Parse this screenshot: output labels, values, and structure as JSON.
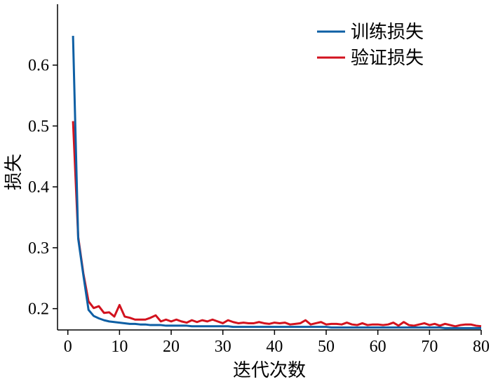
{
  "chart_data": {
    "type": "line",
    "xlabel": "迭代次数",
    "ylabel": "损失",
    "xlim": [
      -2,
      80
    ],
    "ylim": [
      0.165,
      0.7
    ],
    "xticks": [
      0,
      10,
      20,
      30,
      40,
      50,
      60,
      70,
      80
    ],
    "yticks": [
      0.2,
      0.3,
      0.4,
      0.5,
      0.6
    ],
    "x_tick_labels": [
      "0",
      "10",
      "20",
      "30",
      "40",
      "50",
      "60",
      "70",
      "80"
    ],
    "y_tick_labels": [
      "0.2",
      "0.3",
      "0.4",
      "0.5",
      "0.6"
    ],
    "grid": false,
    "legend_position": "top-right",
    "series": [
      {
        "name": "训练损失",
        "color": "#0e5fa4",
        "x": [
          1,
          2,
          3,
          4,
          5,
          6,
          7,
          8,
          9,
          10,
          11,
          12,
          13,
          14,
          15,
          16,
          17,
          18,
          19,
          20,
          21,
          22,
          23,
          24,
          25,
          26,
          27,
          28,
          29,
          30,
          31,
          32,
          33,
          34,
          35,
          36,
          37,
          38,
          39,
          40,
          41,
          42,
          43,
          44,
          45,
          46,
          47,
          48,
          49,
          50,
          51,
          52,
          53,
          54,
          55,
          56,
          57,
          58,
          59,
          60,
          61,
          62,
          63,
          64,
          65,
          66,
          67,
          68,
          69,
          70,
          71,
          72,
          73,
          74,
          75,
          76,
          77,
          78,
          79,
          80
        ],
        "values": [
          0.648,
          0.315,
          0.255,
          0.198,
          0.188,
          0.184,
          0.181,
          0.179,
          0.178,
          0.177,
          0.176,
          0.175,
          0.175,
          0.174,
          0.174,
          0.173,
          0.173,
          0.173,
          0.172,
          0.172,
          0.172,
          0.172,
          0.172,
          0.171,
          0.171,
          0.171,
          0.171,
          0.171,
          0.171,
          0.171,
          0.171,
          0.17,
          0.17,
          0.17,
          0.17,
          0.17,
          0.17,
          0.17,
          0.17,
          0.17,
          0.17,
          0.17,
          0.17,
          0.17,
          0.17,
          0.17,
          0.17,
          0.17,
          0.17,
          0.17,
          0.169,
          0.169,
          0.169,
          0.169,
          0.169,
          0.169,
          0.169,
          0.169,
          0.169,
          0.169,
          0.169,
          0.169,
          0.169,
          0.169,
          0.169,
          0.169,
          0.169,
          0.169,
          0.169,
          0.169,
          0.169,
          0.169,
          0.168,
          0.168,
          0.168,
          0.168,
          0.168,
          0.168,
          0.168,
          0.168
        ]
      },
      {
        "name": "验证损失",
        "color": "#d2121e",
        "x": [
          1,
          2,
          3,
          4,
          5,
          6,
          7,
          8,
          9,
          10,
          11,
          12,
          13,
          14,
          15,
          16,
          17,
          18,
          19,
          20,
          21,
          22,
          23,
          24,
          25,
          26,
          27,
          28,
          29,
          30,
          31,
          32,
          33,
          34,
          35,
          36,
          37,
          38,
          39,
          40,
          41,
          42,
          43,
          44,
          45,
          46,
          47,
          48,
          49,
          50,
          51,
          52,
          53,
          54,
          55,
          56,
          57,
          58,
          59,
          60,
          61,
          62,
          63,
          64,
          65,
          66,
          67,
          68,
          69,
          70,
          71,
          72,
          73,
          74,
          75,
          76,
          77,
          78,
          79,
          80
        ],
        "values": [
          0.508,
          0.318,
          0.258,
          0.212,
          0.201,
          0.204,
          0.193,
          0.194,
          0.187,
          0.206,
          0.187,
          0.185,
          0.182,
          0.182,
          0.182,
          0.185,
          0.189,
          0.179,
          0.182,
          0.179,
          0.182,
          0.179,
          0.177,
          0.181,
          0.178,
          0.181,
          0.179,
          0.182,
          0.179,
          0.176,
          0.181,
          0.178,
          0.176,
          0.177,
          0.176,
          0.176,
          0.178,
          0.176,
          0.175,
          0.177,
          0.176,
          0.177,
          0.174,
          0.175,
          0.176,
          0.181,
          0.174,
          0.176,
          0.178,
          0.174,
          0.175,
          0.175,
          0.174,
          0.177,
          0.174,
          0.173,
          0.176,
          0.173,
          0.174,
          0.174,
          0.173,
          0.174,
          0.177,
          0.172,
          0.178,
          0.173,
          0.172,
          0.174,
          0.176,
          0.173,
          0.175,
          0.172,
          0.175,
          0.173,
          0.171,
          0.173,
          0.174,
          0.174,
          0.172,
          0.171
        ]
      }
    ]
  }
}
